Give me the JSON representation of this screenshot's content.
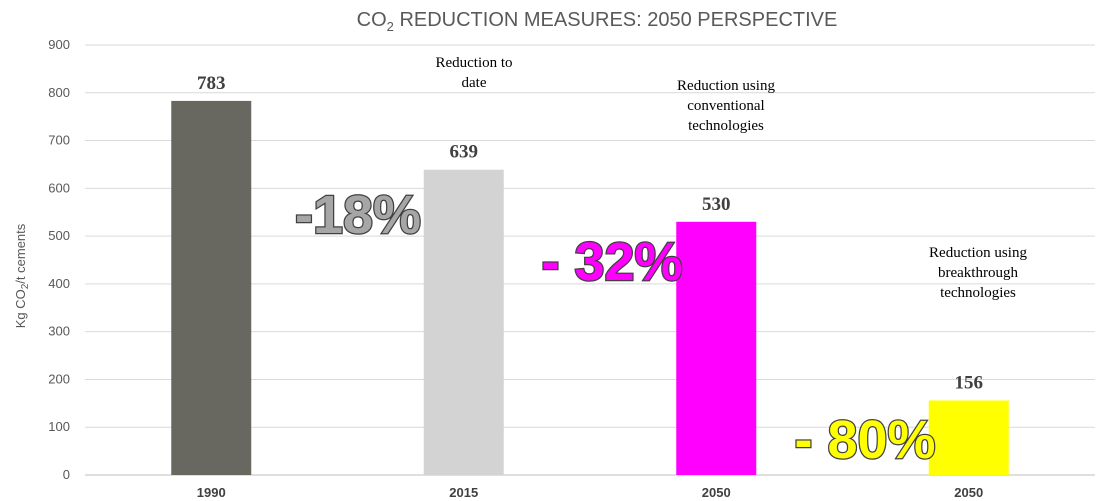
{
  "chart_data": {
    "type": "bar",
    "title_parts": [
      "CO",
      "2",
      " REDUCTION MEASURES:  2050 PERSPECTIVE"
    ],
    "ylabel_parts": [
      "Kg CO",
      "2",
      "/t cements"
    ],
    "categories": [
      "1990",
      "2015",
      "2050",
      "2050"
    ],
    "values": [
      783,
      639,
      530,
      156
    ],
    "value_labels": [
      "783",
      "639",
      "530",
      "156"
    ],
    "bar_colors": [
      "#686860",
      "#d3d3d3",
      "#ff00ff",
      "#ffff00"
    ],
    "ylim": [
      0,
      900
    ],
    "yticks": [
      0,
      100,
      200,
      300,
      400,
      500,
      600,
      700,
      800,
      900
    ],
    "grid": true,
    "legend": "none",
    "annotations": [
      {
        "lines": [
          "Reduction to",
          "date"
        ]
      },
      {
        "lines": [
          "Reduction using",
          "conventional",
          "technologies"
        ]
      },
      {
        "lines": [
          "Reduction using",
          "breakthrough",
          "technologies"
        ]
      }
    ],
    "percentages": [
      {
        "text": "-18%",
        "color": "#a6a6a6"
      },
      {
        "text": "- 32%",
        "color": "#ff00ff"
      },
      {
        "text": "- 80%",
        "color": "#ffff00"
      }
    ]
  }
}
